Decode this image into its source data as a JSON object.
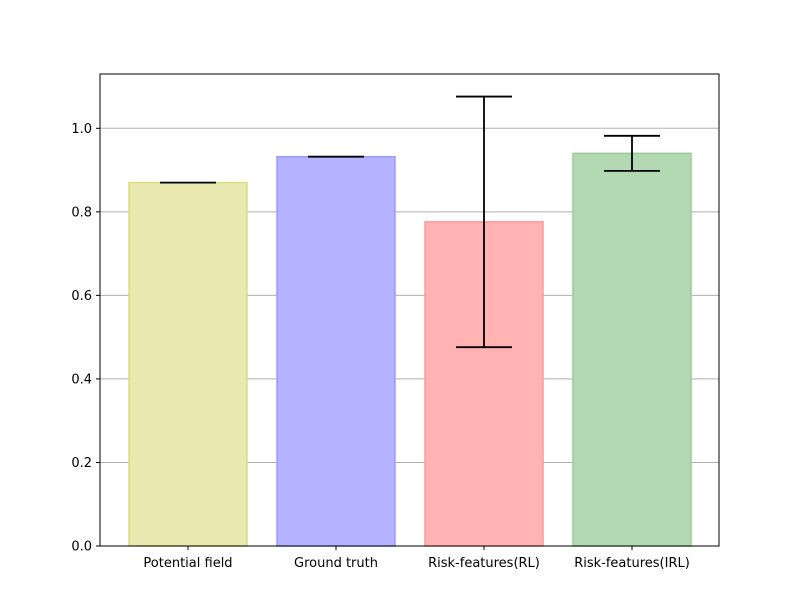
{
  "chart_data": {
    "type": "bar",
    "title": "",
    "xlabel": "",
    "ylabel": "",
    "categories": [
      "Potential field",
      "Ground truth",
      "Risk-features(RL)",
      "Risk-features(IRL)"
    ],
    "values": [
      0.87,
      0.932,
      0.776,
      0.94
    ],
    "errors": [
      0.0,
      0.0,
      0.3,
      0.042
    ],
    "colors": [
      "#e8e8b0",
      "#b3b3ff",
      "#ffb3b3",
      "#b3d9b3"
    ],
    "edge_colors": [
      "#dcdc80",
      "#9999ff",
      "#ff9999",
      "#99cc99"
    ],
    "ylim": [
      0,
      1.13
    ],
    "yticks": [
      0.0,
      0.2,
      0.4,
      0.6,
      0.8,
      1.0
    ],
    "ytick_labels": [
      "0.0",
      "0.2",
      "0.4",
      "0.6",
      "0.8",
      "1.0"
    ],
    "grid": "y"
  }
}
